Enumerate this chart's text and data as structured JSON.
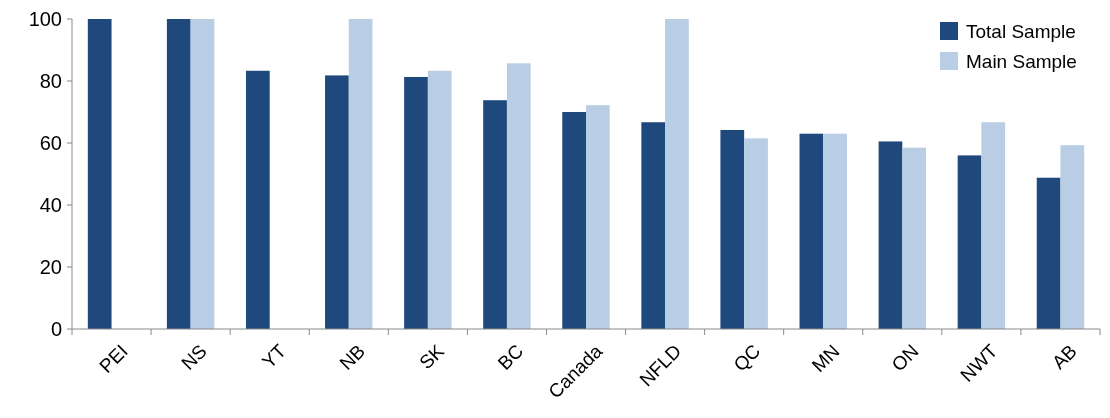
{
  "chart_data": {
    "type": "bar",
    "categories": [
      "PEI",
      "NS",
      "YT",
      "NB",
      "SK",
      "BC",
      "Canada",
      "NFLD",
      "QC",
      "MN",
      "ON",
      "NWT",
      "AB"
    ],
    "series": [
      {
        "name": "Total Sample",
        "color": "#1f497d",
        "values": [
          100,
          100,
          83.3,
          81.8,
          81.3,
          73.8,
          70,
          66.7,
          64.2,
          63,
          60.5,
          56,
          48.8
        ]
      },
      {
        "name": "Main Sample",
        "color": "#b9cde5",
        "values": [
          null,
          100,
          null,
          100,
          83.3,
          85.7,
          72.2,
          100,
          61.5,
          63,
          58.5,
          66.7,
          59.3
        ]
      }
    ],
    "ylim": [
      0,
      100
    ],
    "yticks": [
      0,
      20,
      40,
      60,
      80,
      100
    ],
    "grid": false,
    "legend": "top right"
  }
}
